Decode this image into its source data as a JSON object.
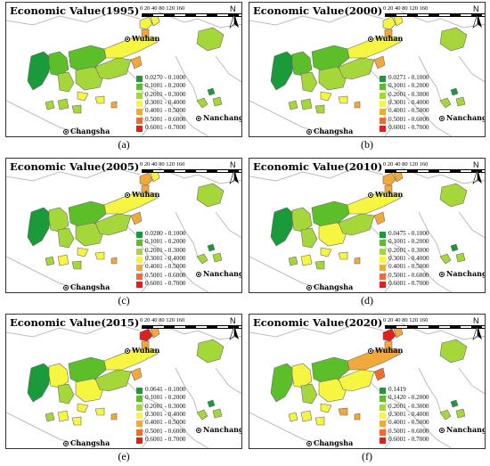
{
  "figure": {
    "panels": [
      {
        "title": "Economic Value(1995)",
        "caption": "(a)",
        "first_class": "0.0270 - 0.1000",
        "variant": "1995"
      },
      {
        "title": "Economic Value(2000)",
        "caption": "(b)",
        "first_class": "0.0271 - 0.1000",
        "variant": "2000"
      },
      {
        "title": "Economic Value(2005)",
        "caption": "(c)",
        "first_class": "0.0280 - 0.1000",
        "variant": "2005"
      },
      {
        "title": "Economic Value(2010)",
        "caption": "(d)",
        "first_class": "0.0475 - 0.1000",
        "variant": "2010"
      },
      {
        "title": "Economic Value(2015)",
        "caption": "(e)",
        "first_class": "0.0641 - 0.1000",
        "variant": "2015"
      },
      {
        "title": "Economic Value(2020)",
        "caption": "(f)",
        "first_class": "0.1419",
        "second_class": "0.1420 - 0.2000",
        "variant": "2020"
      }
    ],
    "legend": {
      "classes": [
        {
          "label": "0.0270 - 0.1000",
          "color": "#1a9a3a"
        },
        {
          "label": "0.1001 - 0.2000",
          "color": "#5cbf2a"
        },
        {
          "label": "0.2001 - 0.3000",
          "color": "#a6d73a"
        },
        {
          "label": "0.3001 - 0.4000",
          "color": "#f5f542"
        },
        {
          "label": "0.4001 - 0.5000",
          "color": "#f2a93b"
        },
        {
          "label": "0.5001 - 0.6000",
          "color": "#ef6c2a"
        },
        {
          "label": "0.6001 - 0.7000",
          "color": "#e02020"
        }
      ]
    },
    "cities": {
      "wuhan": "Wuhan",
      "nanchang": "Nanchang",
      "changsha": "Changsha"
    },
    "scale": {
      "ticks": "0  20 40      80      120     160",
      "unit": "KM"
    },
    "north_label": "N",
    "boundary_color": "#bdbdbd"
  }
}
